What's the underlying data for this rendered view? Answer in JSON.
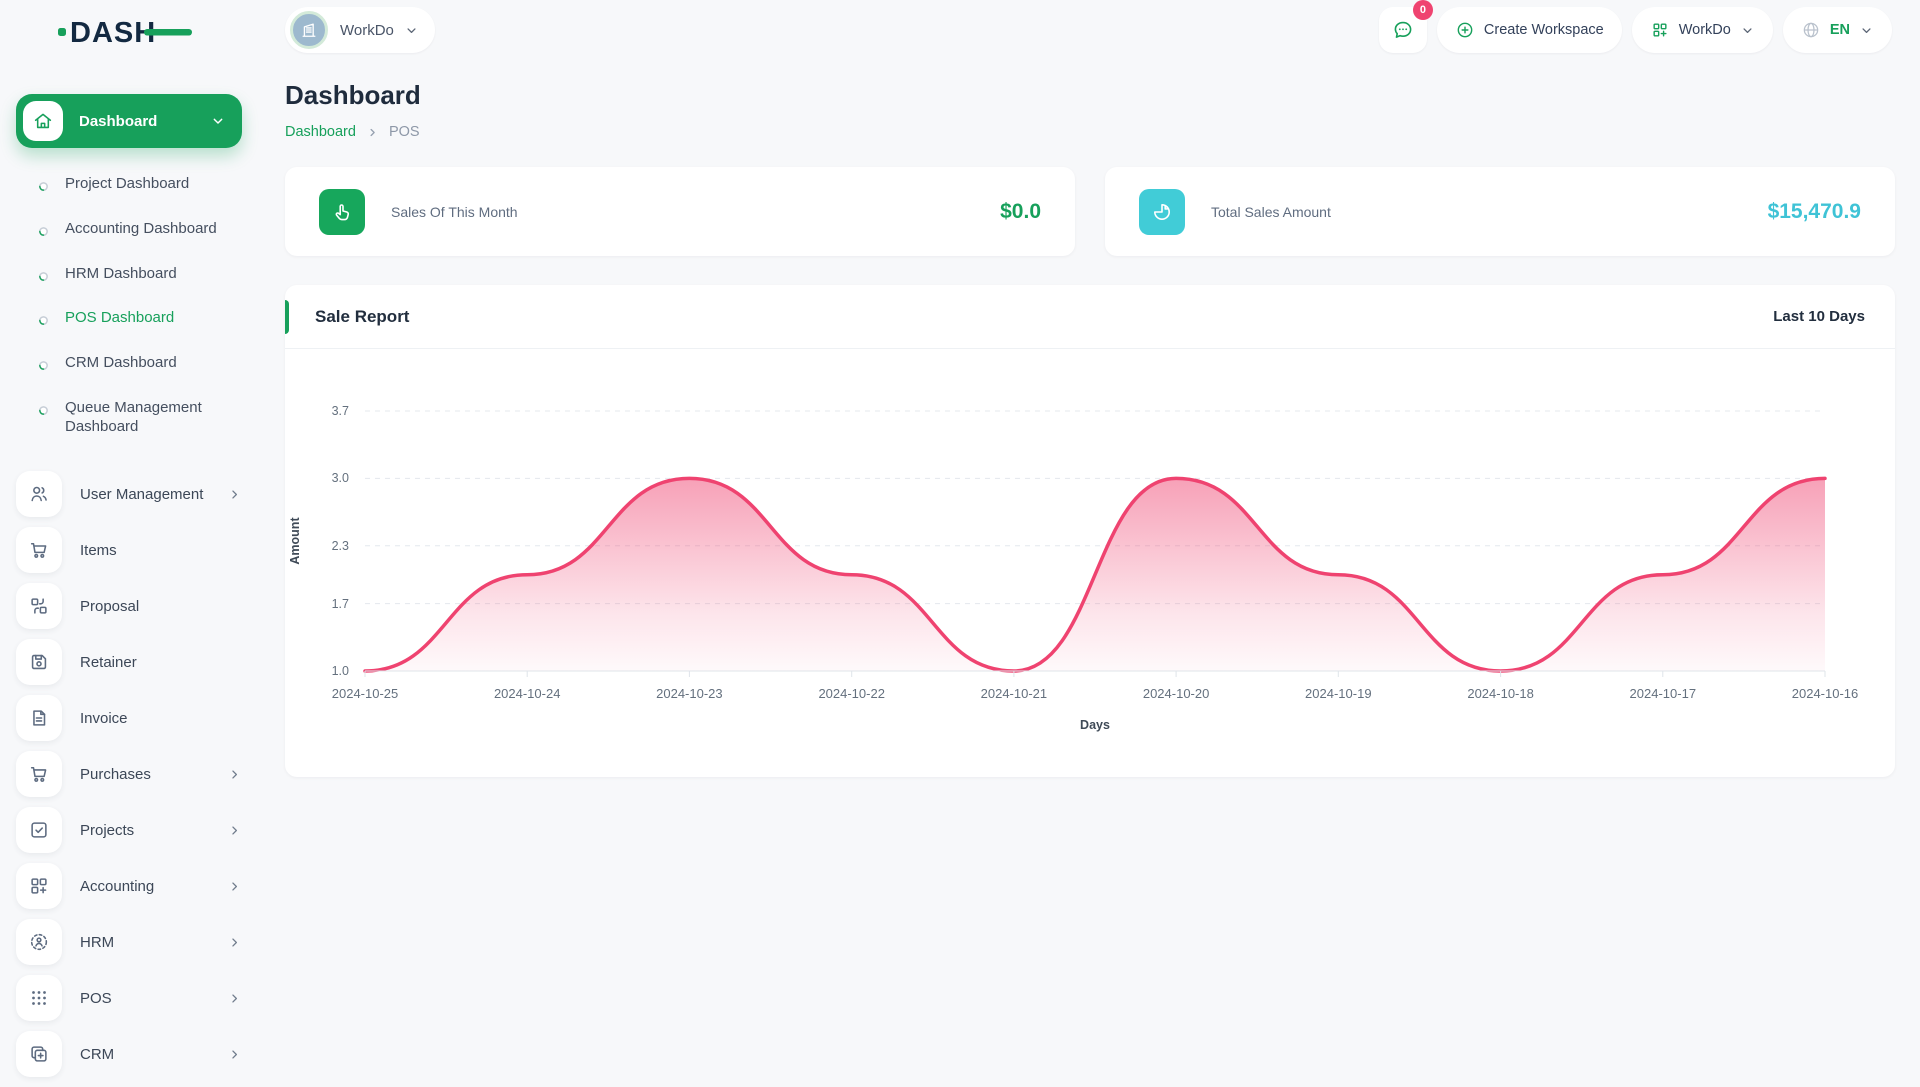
{
  "colors": {
    "primary": "#17a05b",
    "pink": "#ef4370",
    "teal": "#41ccd7",
    "navy": "#132941"
  },
  "brand": {
    "logo_text": "DASH"
  },
  "topbar": {
    "workspace_name": "WorkDo",
    "messages_badge": "0",
    "create_workspace_label": "Create Workspace",
    "workspace_switcher_label": "WorkDo",
    "language": "EN"
  },
  "sidebar": {
    "dashboard_label": "Dashboard",
    "dashboard_children": [
      {
        "label": "Project Dashboard",
        "active": false
      },
      {
        "label": "Accounting Dashboard",
        "active": false
      },
      {
        "label": "HRM Dashboard",
        "active": false
      },
      {
        "label": "POS Dashboard",
        "active": true
      },
      {
        "label": "CRM Dashboard",
        "active": false
      },
      {
        "label": "Queue Management Dashboard",
        "active": false
      }
    ],
    "items": [
      {
        "label": "User Management",
        "icon": "users-icon",
        "has_children": true
      },
      {
        "label": "Items",
        "icon": "cart-icon",
        "has_children": false
      },
      {
        "label": "Proposal",
        "icon": "proposal-icon",
        "has_children": false
      },
      {
        "label": "Retainer",
        "icon": "retainer-icon",
        "has_children": false
      },
      {
        "label": "Invoice",
        "icon": "invoice-icon",
        "has_children": false
      },
      {
        "label": "Purchases",
        "icon": "cart-icon",
        "has_children": true
      },
      {
        "label": "Projects",
        "icon": "projects-icon",
        "has_children": true
      },
      {
        "label": "Accounting",
        "icon": "accounting-icon",
        "has_children": true
      },
      {
        "label": "HRM",
        "icon": "hrm-icon",
        "has_children": true
      },
      {
        "label": "POS",
        "icon": "pos-icon",
        "has_children": true
      },
      {
        "label": "CRM",
        "icon": "crm-icon",
        "has_children": true
      }
    ]
  },
  "page": {
    "title": "Dashboard",
    "breadcrumb": [
      "Dashboard",
      "POS"
    ]
  },
  "stats": [
    {
      "label": "Sales Of This Month",
      "value": "$0.0",
      "icon": "hand-click-icon",
      "accent": "#17a75c",
      "value_color": "#17a05b"
    },
    {
      "label": "Total Sales Amount",
      "value": "$15,470.9",
      "icon": "pie-chart-icon",
      "accent": "#41ccd7",
      "value_color": "#3fc3d6"
    }
  ],
  "chart_card": {
    "title": "Sale Report",
    "range_label": "Last 10 Days"
  },
  "chart_data": {
    "type": "area",
    "title": "Sale Report",
    "x": [
      "2024-10-25",
      "2024-10-24",
      "2024-10-23",
      "2024-10-22",
      "2024-10-21",
      "2024-10-20",
      "2024-10-19",
      "2024-10-18",
      "2024-10-17",
      "2024-10-16"
    ],
    "values": [
      1.0,
      2.0,
      3.0,
      2.0,
      1.0,
      3.0,
      2.0,
      1.0,
      2.0,
      3.0
    ],
    "xlabel": "Days",
    "ylabel": "Amount",
    "yticks": [
      1.0,
      1.7,
      2.3,
      3.0,
      3.7
    ],
    "ylim": [
      1.0,
      3.7
    ],
    "line_color": "#ef4370",
    "grid": "dashed-horizontal",
    "legend": "none"
  }
}
